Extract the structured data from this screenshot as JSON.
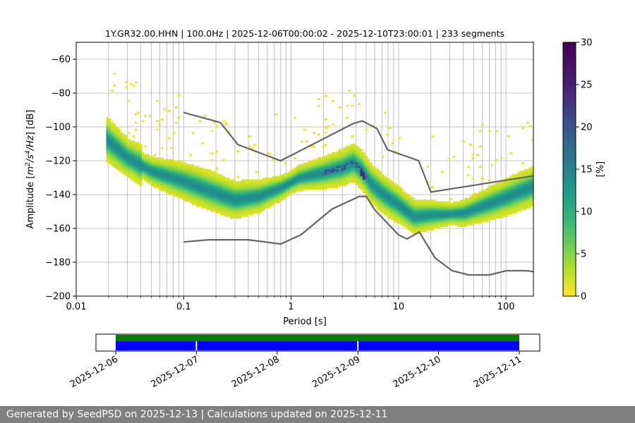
{
  "chart_data": {
    "type": "heatmap",
    "title": "1Y.GR32.00.HHN | 100.0Hz | 2025-12-06T00:00:02 - 2025-12-10T23:00:01 | 233 segments",
    "xlabel": "Period [s]",
    "ylabel_prefix": "Amplitude [",
    "ylabel_suffix": "] [dB]",
    "ylabel_unit_base": "m",
    "ylabel_unit_exp1": "2",
    "ylabel_unit_mid": "/s",
    "ylabel_unit_exp2": "4",
    "ylabel_unit_end": "/Hz",
    "x_scale": "log",
    "xlim": [
      0.01,
      180
    ],
    "ylim": [
      -200,
      -50
    ],
    "x_ticks": [
      0.01,
      0.1,
      1,
      10,
      100
    ],
    "x_tick_labels": [
      "0.01",
      "0.1",
      "1",
      "10",
      "100"
    ],
    "y_ticks": [
      -200,
      -180,
      -160,
      -140,
      -120,
      -100,
      -80,
      -60
    ],
    "y_tick_labels": [
      "−200",
      "−180",
      "−160",
      "−140",
      "−120",
      "−100",
      "−80",
      "−60"
    ],
    "grid": true,
    "colorbar": {
      "label": "[%]",
      "colormap": "viridis_r",
      "range": [
        0,
        30
      ],
      "ticks": [
        0,
        5,
        10,
        15,
        20,
        25,
        30
      ],
      "tick_labels": [
        "0",
        "5",
        "10",
        "15",
        "20",
        "25",
        "30"
      ]
    },
    "psd_mode": {
      "period": [
        0.019,
        0.03,
        0.05,
        0.1,
        0.2,
        0.3,
        0.5,
        0.8,
        1.2,
        2,
        3,
        3.8,
        4.5,
        5.5,
        7,
        10,
        14,
        20,
        40,
        80,
        180
      ],
      "amplitude": [
        -107,
        -118,
        -126,
        -132,
        -139,
        -143,
        -141,
        -136,
        -130,
        -127,
        -124,
        -121,
        -125,
        -133,
        -139,
        -146,
        -153,
        -152,
        -151,
        -144,
        -135
      ]
    },
    "new_high_noise_model": {
      "period": [
        0.1,
        0.22,
        0.32,
        0.8,
        3.8,
        4.6,
        6.3,
        7.9,
        15.4,
        20,
        354.8
      ],
      "amplitude": [
        -91.5,
        -97.4,
        -110.5,
        -120,
        -98,
        -96.5,
        -101,
        -113.5,
        -120,
        -138.5,
        -126
      ]
    },
    "new_low_noise_model": {
      "period": [
        0.1,
        0.17,
        0.4,
        0.8,
        1.24,
        2.4,
        4.3,
        5,
        6,
        10,
        12,
        15.6,
        21.9,
        31.6,
        45,
        70,
        101,
        154,
        180
      ],
      "amplitude": [
        -168,
        -166.7,
        -166.7,
        -169.2,
        -163.7,
        -148.6,
        -141.1,
        -141.1,
        -149,
        -163.8,
        -166.2,
        -162.1,
        -177.5,
        -185,
        -187.5,
        -187.5,
        -185,
        -185,
        -185.5
      ]
    }
  },
  "timeline": {
    "start": "2025-12-06",
    "end": "2025-12-11",
    "date_ticks": [
      "2025-12-06",
      "2025-12-07",
      "2025-12-08",
      "2025-12-09",
      "2025-12-10",
      "2025-12-11"
    ],
    "data_start": "2025-12-06T00:00:02",
    "data_end": "2025-12-10T23:00:01",
    "gap_dates": [
      "2025-12-07",
      "2025-12-09"
    ],
    "quality_color": "#008000",
    "coverage_color": "#0000ff"
  },
  "footer": {
    "text": "Generated by SeedPSD on 2025-12-13 | Calculations updated on 2025-12-11"
  }
}
